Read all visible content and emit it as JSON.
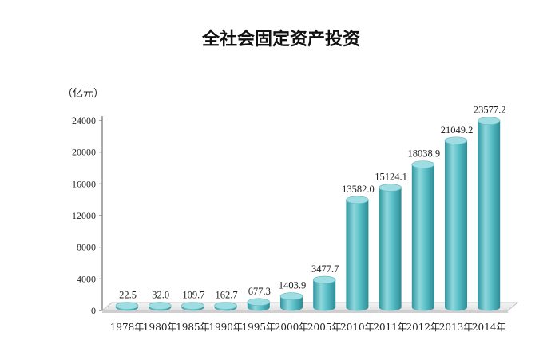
{
  "chart_data": {
    "type": "bar",
    "title": "全社会固定资产投资",
    "unit_label": "（亿元）",
    "categories": [
      "1978年",
      "1980年",
      "1985年",
      "1990年",
      "1995年",
      "2000年",
      "2005年",
      "2010年",
      "2011年",
      "2012年",
      "2013年",
      "2014年"
    ],
    "series": [
      {
        "values": [
          22.5,
          32.0,
          109.7,
          162.7,
          677.3,
          1403.9,
          3477.7,
          13582.0,
          15124.1,
          18038.9,
          21049.2,
          23577.2
        ]
      }
    ],
    "data_labels": [
      "22.5",
      "32.0",
      "109.7",
      "162.7",
      "677.3",
      "1403.9",
      "3477.7",
      "13582.0",
      "15124.1",
      "18038.9",
      "21049.2",
      "23577.2"
    ],
    "y_ticks": [
      0,
      4000,
      8000,
      12000,
      16000,
      20000,
      24000
    ],
    "y_tick_labels": [
      "0",
      "4000",
      "8000",
      "12000",
      "16000",
      "20000",
      "24000"
    ],
    "ylim": [
      0,
      24000
    ],
    "bar_color": "#5bc0c8",
    "grid": false,
    "legend": "none"
  }
}
